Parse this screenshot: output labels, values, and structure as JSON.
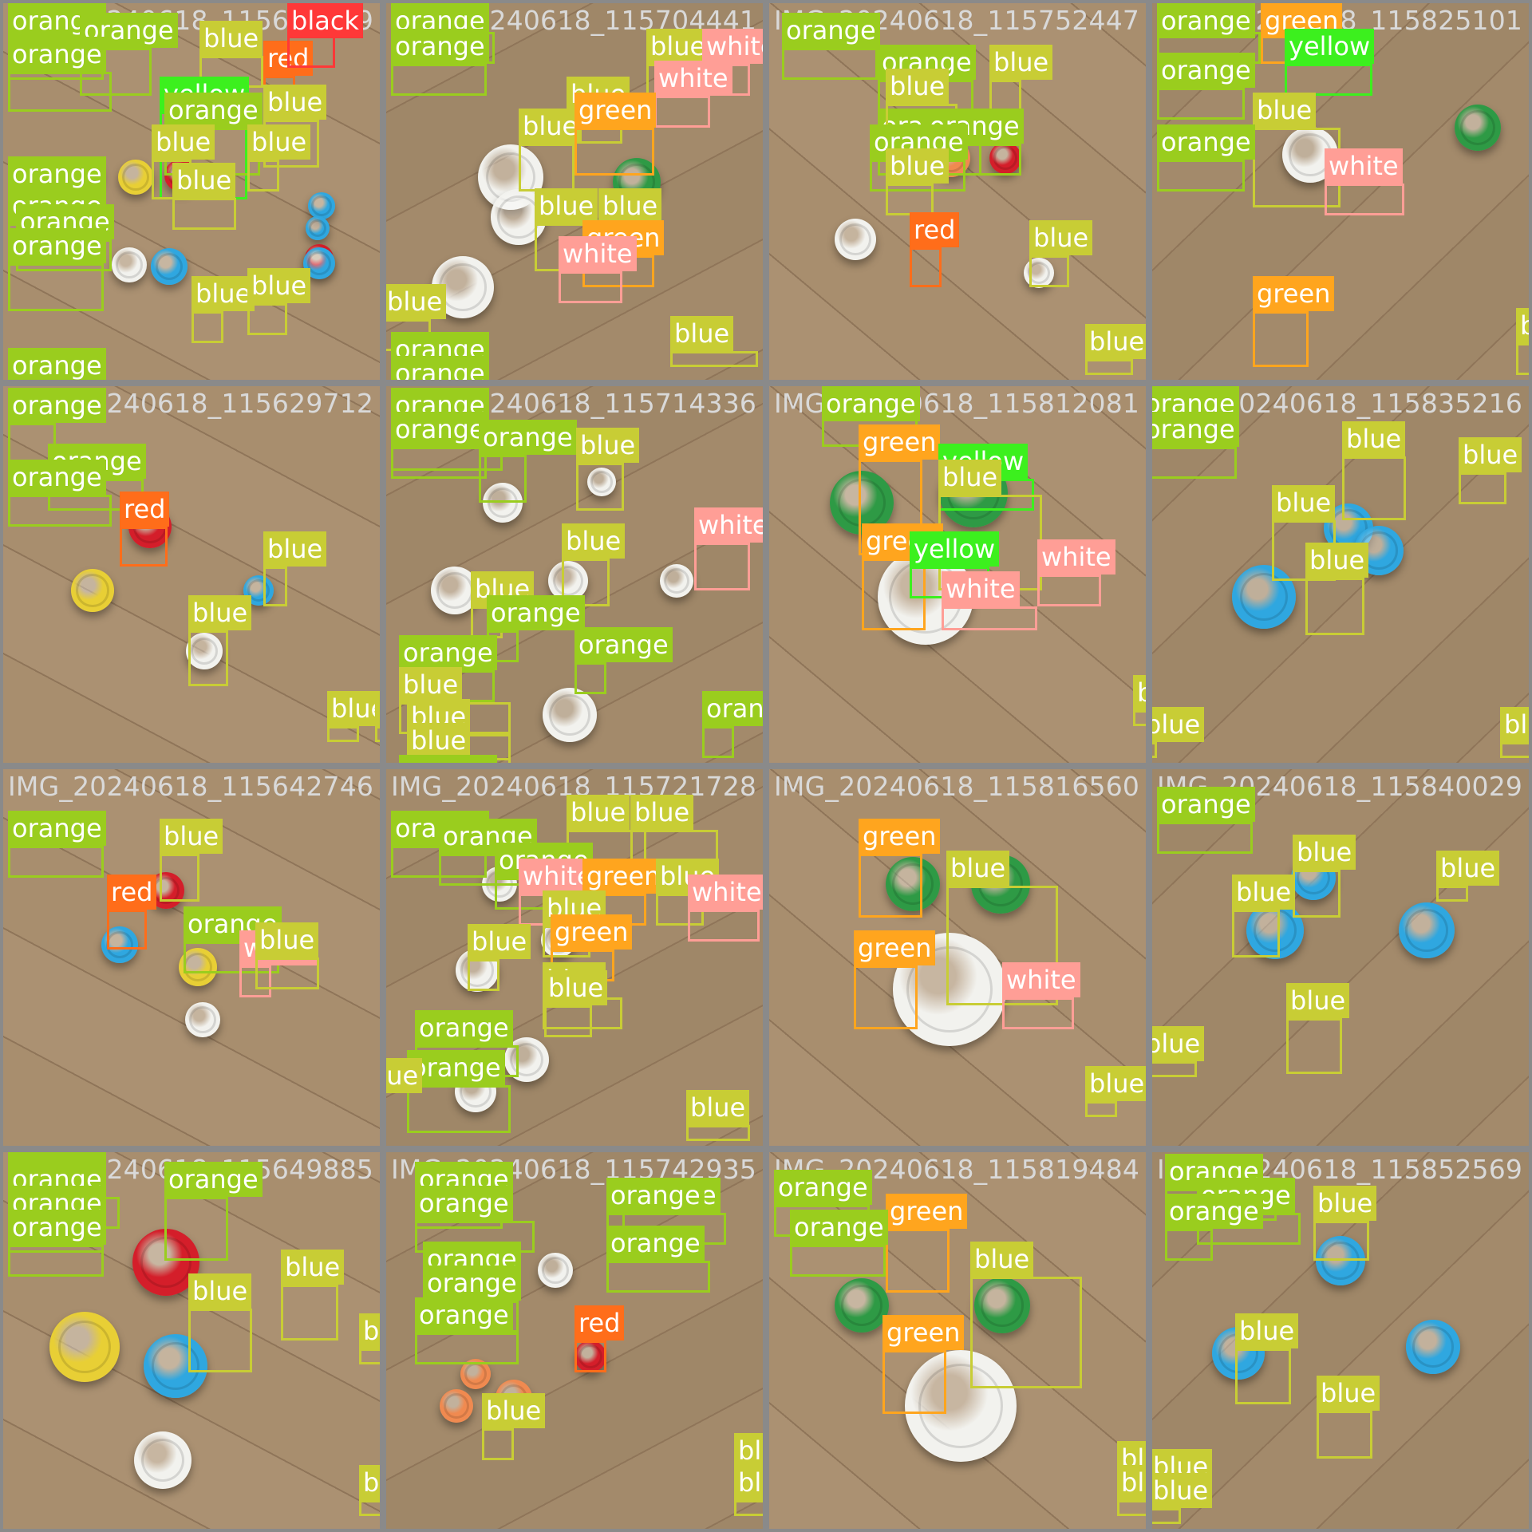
{
  "classes": {
    "orange": {
      "label": "orange",
      "color": "#9acd1e"
    },
    "blue": {
      "label": "blue",
      "color": "#c8cd35"
    },
    "white": {
      "label": "white",
      "color": "#ff9e96"
    },
    "green": {
      "label": "green",
      "color": "#ffa51e"
    },
    "red": {
      "label": "red",
      "color": "#ff6d1a"
    },
    "yellow": {
      "label": "yellow",
      "color": "#3cf01e"
    },
    "black": {
      "label": "black",
      "color": "#ff3838"
    }
  },
  "cap_colors": {
    "blue": "#2fa7e0",
    "white": "#f2f2ee",
    "green": "#2e9a45",
    "red": "#d41e2a",
    "yellow": "#e8cf35",
    "orange": "#f08a50"
  },
  "tiles": [
    {
      "title": "IMG_20240618_115604039",
      "caps": [
        {
          "c": "green"
        },
        {
          "c": "yellow"
        },
        {
          "c": "red"
        },
        {
          "c": "blue"
        },
        {
          "c": "blue"
        },
        {
          "c": "white"
        },
        {
          "c": "red"
        },
        {
          "c": "blue"
        },
        {
          "c": "blue"
        }
      ],
      "dets": [
        {
          "cls": "orange"
        },
        {
          "cls": "orange"
        },
        {
          "cls": "orange"
        },
        {
          "cls": "blue"
        },
        {
          "cls": "red"
        },
        {
          "cls": "black"
        },
        {
          "cls": "yellow"
        },
        {
          "cls": "blue"
        },
        {
          "cls": "orange"
        },
        {
          "cls": "blue"
        },
        {
          "cls": "blue"
        },
        {
          "cls": "blue"
        },
        {
          "cls": "orange"
        },
        {
          "cls": "orange"
        },
        {
          "cls": "orange"
        },
        {
          "cls": "orange"
        },
        {
          "cls": "blue"
        },
        {
          "cls": "blue"
        },
        {
          "cls": "orange"
        }
      ]
    },
    {
      "title": "IMG_20240618_115704441",
      "caps": [
        {
          "c": "white"
        },
        {
          "c": "white"
        },
        {
          "c": "white"
        },
        {
          "c": "green"
        }
      ],
      "dets": [
        {
          "cls": "orange"
        },
        {
          "cls": "orange"
        },
        {
          "cls": "blue"
        },
        {
          "cls": "white"
        },
        {
          "cls": "white"
        },
        {
          "cls": "blue"
        },
        {
          "cls": "blue"
        },
        {
          "cls": "green"
        },
        {
          "cls": "blue"
        },
        {
          "cls": "blue"
        },
        {
          "cls": "green"
        },
        {
          "cls": "white"
        },
        {
          "cls": "blue"
        },
        {
          "cls": "blue"
        },
        {
          "cls": "orange"
        },
        {
          "cls": "orange"
        }
      ]
    },
    {
      "title": "IMG_20240618_115752447",
      "caps": [
        {
          "c": "orange"
        },
        {
          "c": "red"
        },
        {
          "c": "white"
        },
        {
          "c": "white"
        }
      ],
      "dets": [
        {
          "cls": "orange"
        },
        {
          "cls": "orange"
        },
        {
          "cls": "blue"
        },
        {
          "cls": "orange"
        },
        {
          "cls": "blue"
        },
        {
          "cls": "orange"
        },
        {
          "cls": "orange"
        },
        {
          "cls": "blue"
        },
        {
          "cls": "red"
        },
        {
          "cls": "blue"
        },
        {
          "cls": "blue"
        },
        {
          "cls": "blue"
        }
      ]
    },
    {
      "title": "IMG_20240618_115825101",
      "caps": [
        {
          "c": "white"
        },
        {
          "c": "green"
        }
      ],
      "dets": [
        {
          "cls": "orange"
        },
        {
          "cls": "green"
        },
        {
          "cls": "yellow"
        },
        {
          "cls": "orange"
        },
        {
          "cls": "blue"
        },
        {
          "cls": "orange"
        },
        {
          "cls": "white"
        },
        {
          "cls": "green"
        },
        {
          "cls": "blue"
        }
      ]
    },
    {
      "title": "IMG_20240618_115629712",
      "caps": [
        {
          "c": "red"
        },
        {
          "c": "yellow"
        },
        {
          "c": "blue"
        },
        {
          "c": "white"
        }
      ],
      "dets": [
        {
          "cls": "orange"
        },
        {
          "cls": "orange"
        },
        {
          "cls": "orange"
        },
        {
          "cls": "red"
        },
        {
          "cls": "blue"
        },
        {
          "cls": "blue"
        },
        {
          "cls": "blue"
        },
        {
          "cls": "blue"
        }
      ]
    },
    {
      "title": "IMG_20240618_115714336",
      "caps": [
        {
          "c": "white"
        },
        {
          "c": "white"
        },
        {
          "c": "white"
        },
        {
          "c": "white"
        },
        {
          "c": "white"
        },
        {
          "c": "white"
        }
      ],
      "dets": [
        {
          "cls": "orange"
        },
        {
          "cls": "orange"
        },
        {
          "cls": "orange"
        },
        {
          "cls": "blue"
        },
        {
          "cls": "white"
        },
        {
          "cls": "blue"
        },
        {
          "cls": "blue"
        },
        {
          "cls": "orange"
        },
        {
          "cls": "orange"
        },
        {
          "cls": "blue"
        },
        {
          "cls": "orange"
        },
        {
          "cls": "orange"
        },
        {
          "cls": "blue"
        },
        {
          "cls": "blue"
        },
        {
          "cls": "orange"
        }
      ]
    },
    {
      "title": "IMG_20240618_115812081",
      "caps": [
        {
          "c": "green"
        },
        {
          "c": "green"
        },
        {
          "c": "white"
        }
      ],
      "dets": [
        {
          "cls": "orange"
        },
        {
          "cls": "green"
        },
        {
          "cls": "yellow"
        },
        {
          "cls": "blue"
        },
        {
          "cls": "green"
        },
        {
          "cls": "yellow"
        },
        {
          "cls": "white"
        },
        {
          "cls": "white"
        },
        {
          "cls": "blue"
        }
      ]
    },
    {
      "title": "IMG_20240618_115835216",
      "caps": [
        {
          "c": "blue"
        },
        {
          "c": "blue"
        },
        {
          "c": "blue"
        }
      ],
      "dets": [
        {
          "cls": "orange"
        },
        {
          "cls": "orange"
        },
        {
          "cls": "blue"
        },
        {
          "cls": "blue"
        },
        {
          "cls": "blue"
        },
        {
          "cls": "blue"
        },
        {
          "cls": "blue"
        },
        {
          "cls": "blue"
        }
      ]
    },
    {
      "title": "IMG_20240618_115642746",
      "caps": [
        {
          "c": "red"
        },
        {
          "c": "blue"
        },
        {
          "c": "yellow"
        },
        {
          "c": "white"
        }
      ],
      "dets": [
        {
          "cls": "orange"
        },
        {
          "cls": "blue"
        },
        {
          "cls": "red"
        },
        {
          "cls": "orange"
        },
        {
          "cls": "white"
        },
        {
          "cls": "blue"
        }
      ]
    },
    {
      "title": "IMG_20240618_115721728",
      "caps": [
        {
          "c": "white"
        },
        {
          "c": "white"
        },
        {
          "c": "white"
        },
        {
          "c": "white"
        },
        {
          "c": "white"
        }
      ],
      "dets": [
        {
          "cls": "orange"
        },
        {
          "cls": "orange"
        },
        {
          "cls": "blue"
        },
        {
          "cls": "blue"
        },
        {
          "cls": "orange"
        },
        {
          "cls": "white"
        },
        {
          "cls": "green"
        },
        {
          "cls": "blue"
        },
        {
          "cls": "white"
        },
        {
          "cls": "blue"
        },
        {
          "cls": "green"
        },
        {
          "cls": "blue"
        },
        {
          "cls": "blue"
        },
        {
          "cls": "blue"
        },
        {
          "cls": "orange"
        },
        {
          "cls": "orange"
        },
        {
          "cls": "blue"
        },
        {
          "cls": "blue"
        }
      ]
    },
    {
      "title": "IMG_20240618_115816560",
      "caps": [
        {
          "c": "green"
        },
        {
          "c": "green"
        },
        {
          "c": "white"
        }
      ],
      "dets": [
        {
          "cls": "green"
        },
        {
          "cls": "blue"
        },
        {
          "cls": "green"
        },
        {
          "cls": "white"
        },
        {
          "cls": "blue"
        },
        {
          "cls": "blue"
        }
      ]
    },
    {
      "title": "IMG_20240618_115840029",
      "caps": [
        {
          "c": "blue"
        },
        {
          "c": "blue"
        },
        {
          "c": "blue"
        }
      ],
      "dets": [
        {
          "cls": "orange"
        },
        {
          "cls": "blue"
        },
        {
          "cls": "blue"
        },
        {
          "cls": "blue"
        },
        {
          "cls": "blue"
        },
        {
          "cls": "blue"
        },
        {
          "cls": "blue"
        }
      ]
    },
    {
      "title": "IMG_20240618_115649885",
      "caps": [
        {
          "c": "red"
        },
        {
          "c": "yellow"
        },
        {
          "c": "blue"
        },
        {
          "c": "white"
        }
      ],
      "dets": [
        {
          "cls": "orange"
        },
        {
          "cls": "orange"
        },
        {
          "cls": "orange"
        },
        {
          "cls": "orange"
        },
        {
          "cls": "orange"
        },
        {
          "cls": "orange"
        },
        {
          "cls": "blue"
        },
        {
          "cls": "blue"
        },
        {
          "cls": "blue"
        },
        {
          "cls": "blue"
        }
      ]
    },
    {
      "title": "IMG_20240618_115742935",
      "caps": [
        {
          "c": "white"
        },
        {
          "c": "orange"
        },
        {
          "c": "orange"
        },
        {
          "c": "orange"
        },
        {
          "c": "red"
        }
      ],
      "dets": [
        {
          "cls": "orange"
        },
        {
          "cls": "orange"
        },
        {
          "cls": "orange"
        },
        {
          "cls": "orange"
        },
        {
          "cls": "orange"
        },
        {
          "cls": "orange"
        },
        {
          "cls": "orange"
        },
        {
          "cls": "orange"
        },
        {
          "cls": "red"
        },
        {
          "cls": "blue"
        },
        {
          "cls": "blue"
        },
        {
          "cls": "blue"
        }
      ]
    },
    {
      "title": "IMG_20240618_115819484",
      "caps": [
        {
          "c": "green"
        },
        {
          "c": "green"
        },
        {
          "c": "white"
        }
      ],
      "dets": [
        {
          "cls": "orange"
        },
        {
          "cls": "green"
        },
        {
          "cls": "orange"
        },
        {
          "cls": "blue"
        },
        {
          "cls": "green"
        },
        {
          "cls": "blue"
        },
        {
          "cls": "blue"
        }
      ]
    },
    {
      "title": "IMG_20240618_115852569",
      "caps": [
        {
          "c": "blue"
        },
        {
          "c": "blue"
        },
        {
          "c": "blue"
        }
      ],
      "dets": [
        {
          "cls": "orange"
        },
        {
          "cls": "orange"
        },
        {
          "cls": "orange"
        },
        {
          "cls": "blue"
        },
        {
          "cls": "blue"
        },
        {
          "cls": "blue"
        },
        {
          "cls": "blue"
        },
        {
          "cls": "blue"
        }
      ]
    }
  ]
}
